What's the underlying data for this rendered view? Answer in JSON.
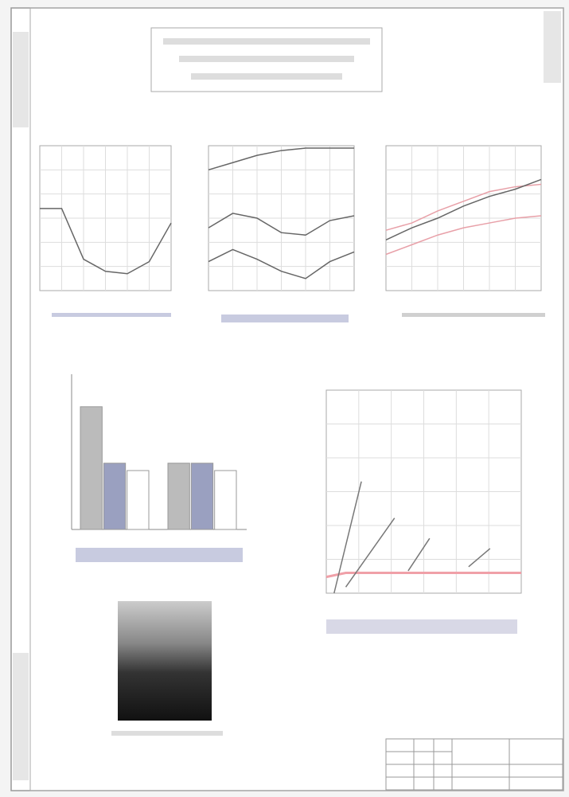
{
  "chart_data": [
    {
      "type": "line",
      "x": [
        0,
        1,
        2,
        3,
        4,
        5,
        6
      ],
      "xlim": [
        0,
        6
      ],
      "ylim": [
        0,
        6
      ],
      "series": [
        {
          "color": "#666666",
          "values": [
            3.4,
            3.4,
            1.3,
            0.8,
            0.7,
            1.2,
            2.8
          ]
        }
      ]
    },
    {
      "type": "line",
      "x": [
        0,
        1,
        2,
        3,
        4,
        5,
        6
      ],
      "xlim": [
        0,
        6
      ],
      "ylim": [
        0,
        6
      ],
      "series": [
        {
          "color": "#666666",
          "values": [
            5.0,
            5.3,
            5.6,
            5.8,
            5.9,
            5.9,
            5.9
          ]
        },
        {
          "color": "#666666",
          "values": [
            2.6,
            3.2,
            3.0,
            2.4,
            2.3,
            2.9,
            3.1
          ]
        },
        {
          "color": "#666666",
          "values": [
            1.2,
            1.7,
            1.3,
            0.8,
            0.5,
            1.2,
            1.6
          ]
        }
      ]
    },
    {
      "type": "line",
      "x": [
        0,
        1,
        2,
        3,
        4,
        5,
        6
      ],
      "xlim": [
        0,
        6
      ],
      "ylim": [
        0,
        6
      ],
      "series": [
        {
          "color": "#e8a0a8",
          "values": [
            2.5,
            2.8,
            3.3,
            3.7,
            4.1,
            4.3,
            4.4
          ]
        },
        {
          "color": "#666666",
          "values": [
            2.1,
            2.6,
            3.0,
            3.5,
            3.9,
            4.2,
            4.6
          ]
        },
        {
          "color": "#e8a0a8",
          "values": [
            1.5,
            1.9,
            2.3,
            2.6,
            2.8,
            3.0,
            3.1
          ]
        }
      ]
    },
    {
      "type": "bar",
      "categories": [
        null,
        null
      ],
      "ylim": [
        0,
        6
      ],
      "series": [
        {
          "color": "#bbbbbb",
          "values": [
            5.0,
            2.7
          ]
        },
        {
          "color": "#9aa0c0",
          "values": [
            2.7,
            2.7
          ]
        },
        {
          "color": "#ffffff",
          "values": [
            2.4,
            2.4
          ]
        }
      ]
    },
    {
      "type": "xyline",
      "xlim": [
        0,
        10
      ],
      "ylim": [
        0,
        10
      ],
      "series": [
        {
          "color": "#f0a0a8",
          "x": [
            0,
            1,
            4,
            10
          ],
          "values": [
            0.8,
            1.0,
            1.0,
            1.0
          ]
        },
        {
          "color": "#777777",
          "x": [
            0.4,
            1.8
          ],
          "values": [
            0,
            5.5
          ]
        },
        {
          "color": "#777777",
          "x": [
            1,
            3.5
          ],
          "values": [
            0.3,
            3.7
          ]
        },
        {
          "color": "#777777",
          "x": [
            4.2,
            5.3
          ],
          "values": [
            1.1,
            2.7
          ]
        },
        {
          "color": "#777777",
          "x": [
            7.3,
            8.4
          ],
          "values": [
            1.3,
            2.2
          ]
        }
      ]
    }
  ]
}
